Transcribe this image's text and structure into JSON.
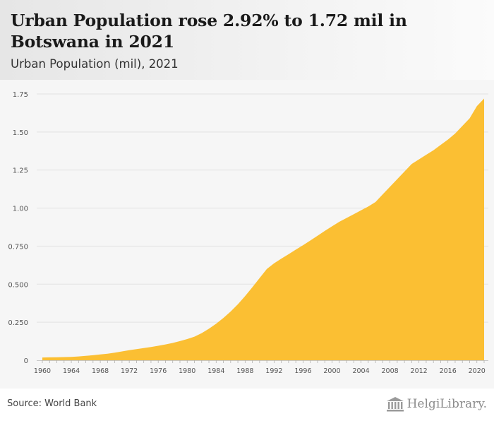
{
  "header": {
    "title": "Urban Population rose 2.92% to 1.72 mil in Botswana in 2021",
    "subtitle": "Urban Population (mil), 2021"
  },
  "footer": {
    "source": "Source: World Bank",
    "logo_text": "HelgiLibrary."
  },
  "colors": {
    "area_fill": "#fbbf33",
    "gridline": "#e2e2e2",
    "axis_text": "#555555"
  },
  "chart_data": {
    "type": "area",
    "title": "Urban Population rose 2.92% to 1.72 mil in Botswana in 2021",
    "subtitle": "Urban Population (mil), 2021",
    "xlabel": "",
    "ylabel": "",
    "ylim": [
      0,
      1.75
    ],
    "xlim": [
      1960,
      2021
    ],
    "grid": true,
    "legend": "none",
    "y_ticks": [
      0,
      0.25,
      0.5,
      0.75,
      1.0,
      1.25,
      1.5,
      1.75
    ],
    "y_tick_labels": [
      "0",
      "0.250",
      "0.500",
      "0.750",
      "1.00",
      "1.25",
      "1.50",
      "1.75"
    ],
    "x_tick_labels": [
      "1960",
      "1964",
      "1968",
      "1972",
      "1976",
      "1980",
      "1984",
      "1988",
      "1992",
      "1996",
      "2000",
      "2004",
      "2008",
      "2012",
      "2016",
      "2020"
    ],
    "series": [
      {
        "name": "Urban Population (mil)",
        "x": [
          1960,
          1961,
          1962,
          1963,
          1964,
          1965,
          1966,
          1967,
          1968,
          1969,
          1970,
          1971,
          1972,
          1973,
          1974,
          1975,
          1976,
          1977,
          1978,
          1979,
          1980,
          1981,
          1982,
          1983,
          1984,
          1985,
          1986,
          1987,
          1988,
          1989,
          1990,
          1991,
          1992,
          1993,
          1994,
          1995,
          1996,
          1997,
          1998,
          1999,
          2000,
          2001,
          2002,
          2003,
          2004,
          2005,
          2006,
          2007,
          2008,
          2009,
          2010,
          2011,
          2012,
          2013,
          2014,
          2015,
          2016,
          2017,
          2018,
          2019,
          2020,
          2021
        ],
        "values": [
          0.018,
          0.019,
          0.02,
          0.021,
          0.022,
          0.025,
          0.029,
          0.033,
          0.038,
          0.043,
          0.05,
          0.058,
          0.066,
          0.073,
          0.08,
          0.087,
          0.095,
          0.104,
          0.114,
          0.126,
          0.139,
          0.155,
          0.178,
          0.207,
          0.24,
          0.278,
          0.32,
          0.368,
          0.422,
          0.48,
          0.54,
          0.6,
          0.637,
          0.668,
          0.697,
          0.727,
          0.756,
          0.787,
          0.818,
          0.85,
          0.88,
          0.91,
          0.935,
          0.96,
          0.985,
          1.01,
          1.04,
          1.09,
          1.14,
          1.19,
          1.24,
          1.29,
          1.32,
          1.35,
          1.38,
          1.415,
          1.45,
          1.49,
          1.54,
          1.59,
          1.67,
          1.72
        ]
      }
    ]
  }
}
